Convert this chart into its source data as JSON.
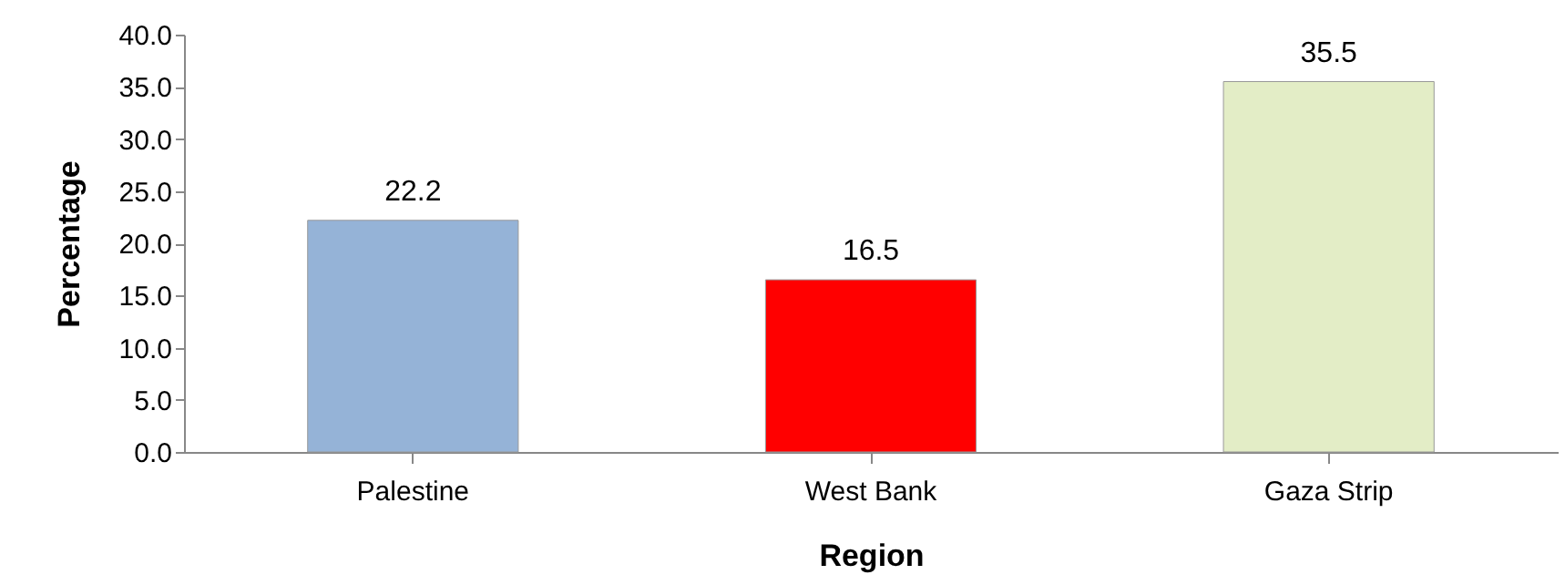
{
  "chart_data": {
    "type": "bar",
    "xlabel": "Region",
    "ylabel": "Percentage",
    "categories": [
      "Palestine",
      "West Bank",
      "Gaza Strip"
    ],
    "values": [
      22.2,
      16.5,
      35.5
    ],
    "colors": [
      "#95b3d7",
      "#ff0000",
      "#e3edc6"
    ],
    "data_labels": true,
    "ylim": [
      0,
      40
    ],
    "yticks": [
      {
        "value": 0,
        "label": "0.0"
      },
      {
        "value": 5,
        "label": "5.0"
      },
      {
        "value": 10,
        "label": "10.0"
      },
      {
        "value": 15,
        "label": "15.0"
      },
      {
        "value": 20,
        "label": "20.0"
      },
      {
        "value": 25,
        "label": "25.0"
      },
      {
        "value": 30,
        "label": "30.0"
      },
      {
        "value": 35,
        "label": "35.0"
      },
      {
        "value": 40,
        "label": "40.0"
      }
    ],
    "grid": false
  }
}
